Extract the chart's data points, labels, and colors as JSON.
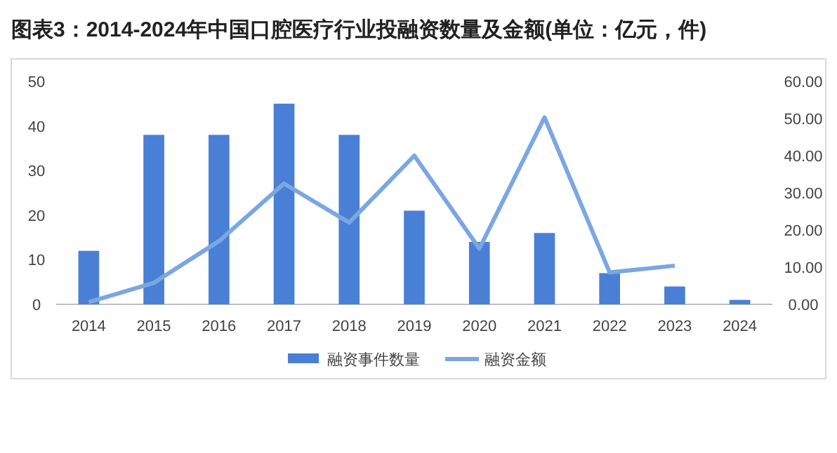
{
  "chart_data": {
    "type": "bar",
    "title": "图表3：2014-2024年中国口腔医疗行业投融资数量及金额(单位：亿元，件)",
    "categories": [
      "2014",
      "2015",
      "2016",
      "2017",
      "2018",
      "2019",
      "2020",
      "2021",
      "2022",
      "2023",
      "2024"
    ],
    "series": [
      {
        "name": "融资事件数量",
        "color": "#4a7fd6",
        "values": [
          12,
          38,
          38,
          45,
          38,
          21,
          14,
          16,
          7,
          4,
          1
        ]
      },
      {
        "name": "融资金额",
        "type": "line",
        "axis": "y2",
        "color": "#7ba7e1",
        "values": [
          0.6,
          5.8,
          17,
          32.5,
          22,
          40,
          15,
          50.3,
          8.6,
          10.4,
          null
        ]
      }
    ],
    "ylim": [
      0,
      50
    ],
    "yticks": [
      0,
      10,
      20,
      30,
      40,
      50
    ],
    "y2lim": [
      0,
      60
    ],
    "y2ticks": [
      {
        "value": 0,
        "label": "0.00"
      },
      {
        "value": 10,
        "label": "10.00"
      },
      {
        "value": 20,
        "label": "20.00"
      },
      {
        "value": 30,
        "label": "30.00"
      },
      {
        "value": 40,
        "label": "40.00"
      },
      {
        "value": 50,
        "label": "50.00"
      },
      {
        "value": 60,
        "label": "60.00"
      }
    ],
    "grid": false,
    "legend": "bottom"
  }
}
